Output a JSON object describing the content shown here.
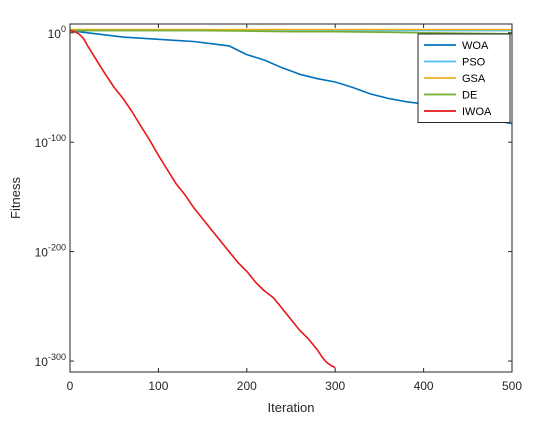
{
  "chart_data": {
    "type": "line",
    "title": "",
    "xlabel": "Iteration",
    "ylabel": "Fitness",
    "xlim": [
      0,
      500
    ],
    "ylim_log10": [
      -310,
      8
    ],
    "yscale": "log",
    "grid": false,
    "legend_position": "top-right",
    "x_ticks": [
      "0",
      "100",
      "200",
      "300",
      "400",
      "500"
    ],
    "y_ticks": [
      {
        "base": "10",
        "exp": "0",
        "log10": 0
      },
      {
        "base": "10",
        "exp": "-100",
        "log10": -100
      },
      {
        "base": "10",
        "exp": "-200",
        "log10": -200
      },
      {
        "base": "10",
        "exp": "-300",
        "log10": -300
      }
    ],
    "series": [
      {
        "name": "WOA",
        "color": "#0072BD",
        "x": [
          0,
          10,
          20,
          40,
          60,
          80,
          100,
          120,
          140,
          160,
          180,
          200,
          220,
          240,
          260,
          280,
          300,
          320,
          340,
          360,
          380,
          400,
          420,
          440,
          460,
          480,
          500
        ],
        "log10_y": [
          2,
          1,
          0,
          -2,
          -4,
          -5,
          -6,
          -7,
          -8,
          -10,
          -12,
          -20,
          -25,
          -32,
          -38,
          -42,
          -45,
          -50,
          -56,
          -60,
          -63,
          -65,
          -70,
          -75,
          -78,
          -80,
          -83
        ]
      },
      {
        "name": "PSO",
        "color": "#4DBEEE",
        "x": [
          0,
          100,
          200,
          300,
          400,
          500
        ],
        "log10_y": [
          2,
          2,
          2,
          2,
          2,
          2
        ]
      },
      {
        "name": "GSA",
        "color": "#EDB120",
        "x": [
          0,
          100,
          200,
          300,
          400,
          500
        ],
        "log10_y": [
          3,
          3,
          3,
          3,
          3,
          3
        ]
      },
      {
        "name": "DE",
        "color": "#77AC30",
        "x": [
          0,
          50,
          100,
          150,
          200,
          250,
          300,
          350,
          400,
          450,
          500
        ],
        "log10_y": [
          2,
          2,
          2,
          2,
          1.5,
          1,
          1,
          0.5,
          0,
          -0.5,
          -1
        ]
      },
      {
        "name": "IWOA",
        "color": "#E8161B",
        "x": [
          0,
          5,
          10,
          15,
          20,
          30,
          40,
          50,
          60,
          70,
          80,
          90,
          100,
          110,
          120,
          130,
          140,
          150,
          160,
          170,
          180,
          190,
          200,
          210,
          220,
          230,
          240,
          250,
          260,
          270,
          280,
          285,
          290,
          295,
          300
        ],
        "log10_y": [
          2,
          1,
          -1,
          -5,
          -12,
          -25,
          -38,
          -50,
          -60,
          -72,
          -85,
          -98,
          -112,
          -125,
          -138,
          -148,
          -160,
          -170,
          -180,
          -190,
          -200,
          -210,
          -218,
          -228,
          -236,
          -242,
          -252,
          -262,
          -272,
          -280,
          -290,
          -296,
          -301,
          -304,
          -306
        ]
      }
    ]
  }
}
